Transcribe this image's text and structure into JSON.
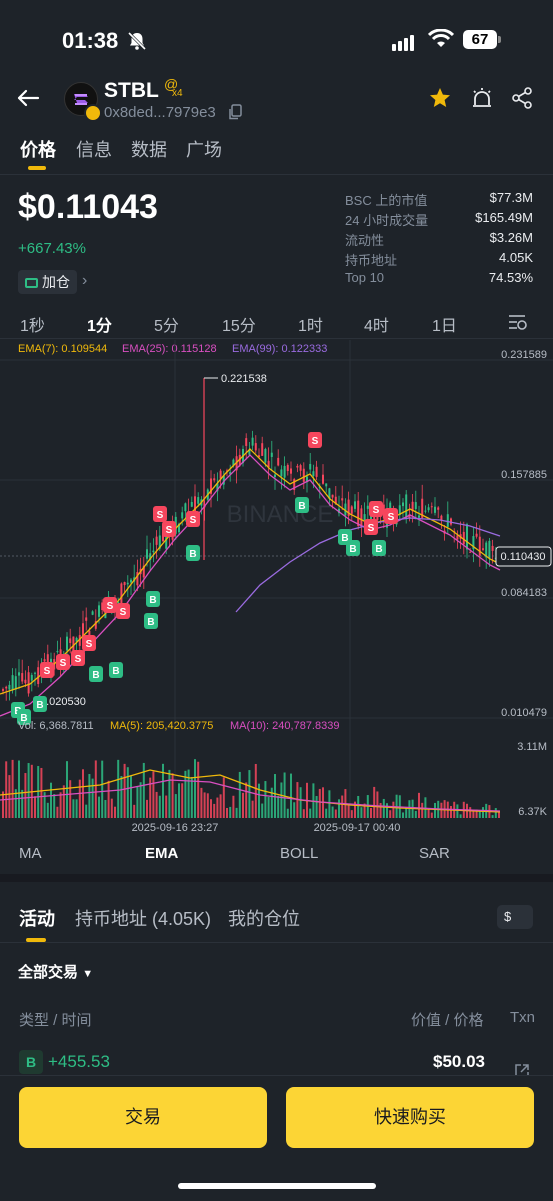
{
  "status_bar": {
    "time": "01:38",
    "battery": "67"
  },
  "token": {
    "name": "STBL",
    "at_badge": "@",
    "badge_count": "x4",
    "address": "0x8ded...7979e3"
  },
  "main_tabs": [
    "价格",
    "信息",
    "数据",
    "广场"
  ],
  "price": {
    "value": "$0.11043",
    "change": "+667.43%",
    "add_position_label": "加仓"
  },
  "stats": [
    {
      "label": "BSC 上的市值",
      "value": "$77.3M"
    },
    {
      "label": "24 小时成交量",
      "value": "$165.49M"
    },
    {
      "label": "流动性",
      "value": "$3.26M"
    },
    {
      "label": "持币地址",
      "value": "4.05K"
    },
    {
      "label": "Top 10",
      "value": "74.53%"
    }
  ],
  "timeframes": [
    "1秒",
    "1分",
    "5分",
    "15分",
    "1时",
    "4时",
    "1日"
  ],
  "active_timeframe": "1分",
  "chart": {
    "ema_legend": [
      {
        "label": "EMA(7): 0.109544",
        "color": "#f0b90b"
      },
      {
        "label": "EMA(25): 0.115128",
        "color": "#d94fc1"
      },
      {
        "label": "EMA(99): 0.122333",
        "color": "#9a6be0"
      }
    ],
    "price_axis": [
      "0.231589",
      "0.157885",
      "0.084183",
      "0.010479"
    ],
    "current_price_tag": "0.110430",
    "high_label": "0.221538",
    "low_label": "0.020530",
    "watermark": "BINANCE",
    "vol_legend": [
      {
        "label": "Vol: 6,368.7811",
        "color": "#b7bdc6"
      },
      {
        "label": "MA(5): 205,420.3775",
        "color": "#f0b90b"
      },
      {
        "label": "MA(10): 240,787.8339",
        "color": "#d94fc1"
      }
    ],
    "volume_axis": [
      "3.11M",
      "6.37K"
    ],
    "time_axis": [
      "2025-09-16 23:27",
      "2025-09-17 00:40"
    ],
    "buy_marker": "B",
    "sell_marker": "S"
  },
  "indicators": [
    "MA",
    "EMA",
    "BOLL",
    "SAR"
  ],
  "active_indicator": "EMA",
  "section_tabs": [
    "活动",
    "持币地址 (4.05K)",
    "我的仓位"
  ],
  "currency_toggle": "$",
  "filter_label": "全部交易",
  "table_headers": {
    "type_time": "类型 / 时间",
    "value_price": "价值 / 价格",
    "txn": "Txn"
  },
  "transactions": [
    {
      "type": "B",
      "amount": "+455.53",
      "value": "$50.03"
    }
  ],
  "buttons": {
    "trade": "交易",
    "quick_buy": "快速购买"
  },
  "colors": {
    "up": "#2ebd85",
    "down": "#f6465d",
    "accent": "#f0b90b",
    "button": "#fcd535"
  }
}
